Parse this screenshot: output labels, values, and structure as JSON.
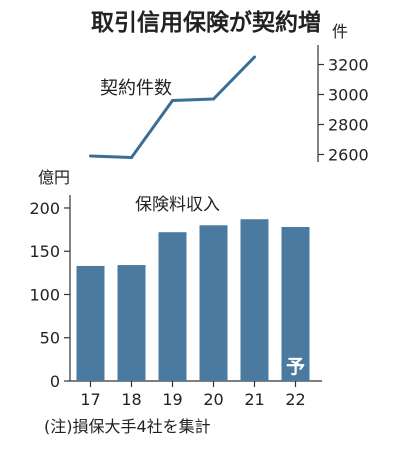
{
  "title": "取引信用保険が契約増",
  "footnote": "(注)損保大手4社を集計",
  "colors": {
    "line": "#3a6e94",
    "bar": "#4a7aa0",
    "text": "#222222",
    "axis": "#333333"
  },
  "chart_data": [
    {
      "type": "line",
      "title": "契約件数",
      "unit_label": "件",
      "x": [
        "17",
        "18",
        "19",
        "20",
        "21",
        "22"
      ],
      "values": [
        2590,
        2580,
        2960,
        2970,
        3250,
        null
      ],
      "y_ticks": [
        2600,
        2800,
        3000,
        3200
      ],
      "y_tick_labels": [
        "2600",
        "2800",
        "3000",
        "3200"
      ],
      "ylim": [
        2550,
        3330
      ],
      "grid": false
    },
    {
      "type": "bar",
      "title": "保険料収入",
      "unit_label": "億円",
      "categories": [
        "17",
        "18",
        "19",
        "20",
        "21",
        "22"
      ],
      "values": [
        133,
        134,
        172,
        180,
        187,
        178
      ],
      "y_ticks": [
        0,
        50,
        100,
        150,
        200
      ],
      "y_tick_labels": [
        "0",
        "50",
        "100",
        "150",
        "200"
      ],
      "ylim": [
        0,
        215
      ],
      "forecast_mark": "予",
      "grid": false
    }
  ]
}
